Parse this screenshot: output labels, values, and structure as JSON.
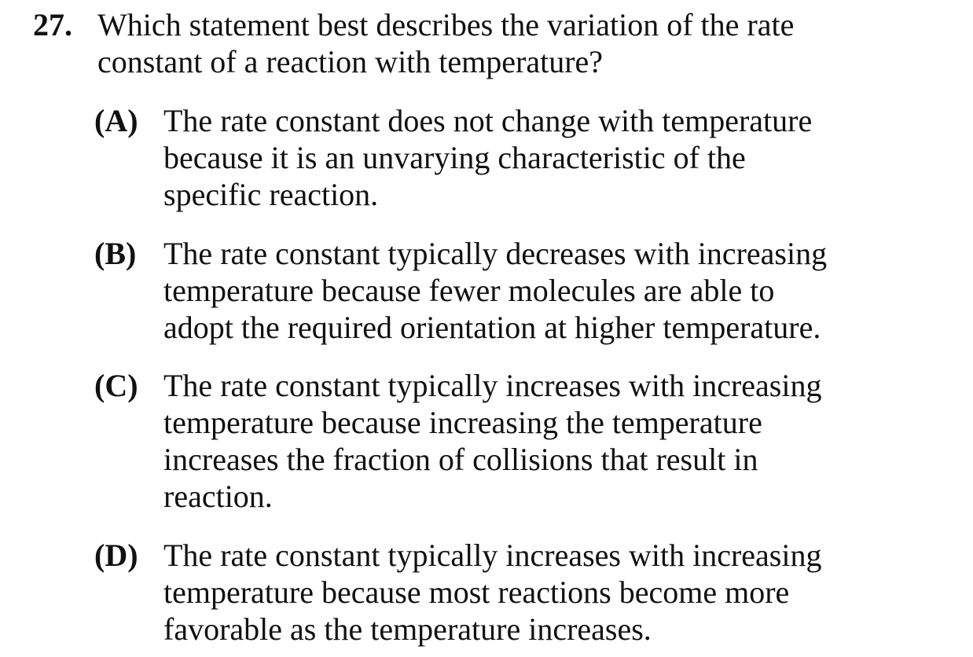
{
  "question": {
    "number": "27.",
    "stem_lines": [
      "Which statement best describes the variation of the rate",
      "constant of a reaction with temperature?"
    ],
    "choices": [
      {
        "letter": "(A)",
        "lines": [
          "The rate constant does not change with temperature",
          "because it is an unvarying characteristic of the",
          "specific reaction."
        ]
      },
      {
        "letter": "(B)",
        "lines": [
          "The rate constant typically decreases with increasing",
          "temperature because fewer molecules are able to",
          "adopt the required orientation at higher temperature."
        ]
      },
      {
        "letter": "(C)",
        "lines": [
          "The rate constant typically increases with increasing",
          "temperature because increasing the temperature",
          "increases the fraction of collisions that result in",
          "reaction."
        ]
      },
      {
        "letter": "(D)",
        "lines": [
          "The rate constant typically increases with increasing",
          "temperature because most reactions become more",
          "favorable as the temperature increases."
        ]
      }
    ]
  }
}
